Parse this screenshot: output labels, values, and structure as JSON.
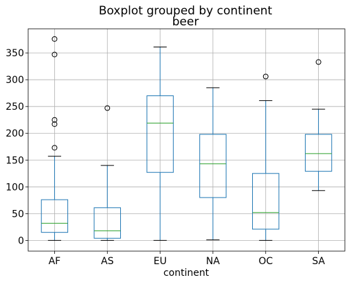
{
  "chart_data": {
    "type": "boxplot",
    "suptitle": "Boxplot grouped by continent",
    "title": "beer",
    "xlabel": "continent",
    "ylabel": "",
    "ylim": [
      -20,
      395
    ],
    "yticks": [
      0,
      50,
      100,
      150,
      200,
      250,
      300,
      350
    ],
    "grid": true,
    "categories": [
      "AF",
      "AS",
      "EU",
      "NA",
      "OC",
      "SA"
    ],
    "boxes": [
      {
        "name": "AF",
        "whisker_low": 0,
        "q1": 15,
        "median": 32,
        "q3": 76,
        "whisker_high": 157,
        "fliers": [
          173,
          217,
          225,
          347,
          376
        ]
      },
      {
        "name": "AS",
        "whisker_low": 0,
        "q1": 4,
        "median": 18,
        "q3": 61,
        "whisker_high": 140,
        "fliers": [
          247
        ]
      },
      {
        "name": "EU",
        "whisker_low": 0,
        "q1": 127,
        "median": 219,
        "q3": 270,
        "whisker_high": 361,
        "fliers": []
      },
      {
        "name": "NA",
        "whisker_low": 1,
        "q1": 80,
        "median": 143,
        "q3": 198,
        "whisker_high": 285,
        "fliers": []
      },
      {
        "name": "OC",
        "whisker_low": 0,
        "q1": 21,
        "median": 52,
        "q3": 125,
        "whisker_high": 261,
        "fliers": [
          306
        ]
      },
      {
        "name": "SA",
        "whisker_low": 93,
        "q1": 129,
        "median": 162,
        "q3": 198,
        "whisker_high": 245,
        "fliers": [
          333
        ]
      }
    ],
    "colors": {
      "box": "#1f77b4",
      "whisker": "#1f77b4",
      "median": "#2ca02c",
      "cap": "#000000",
      "flier": "#000000"
    }
  }
}
